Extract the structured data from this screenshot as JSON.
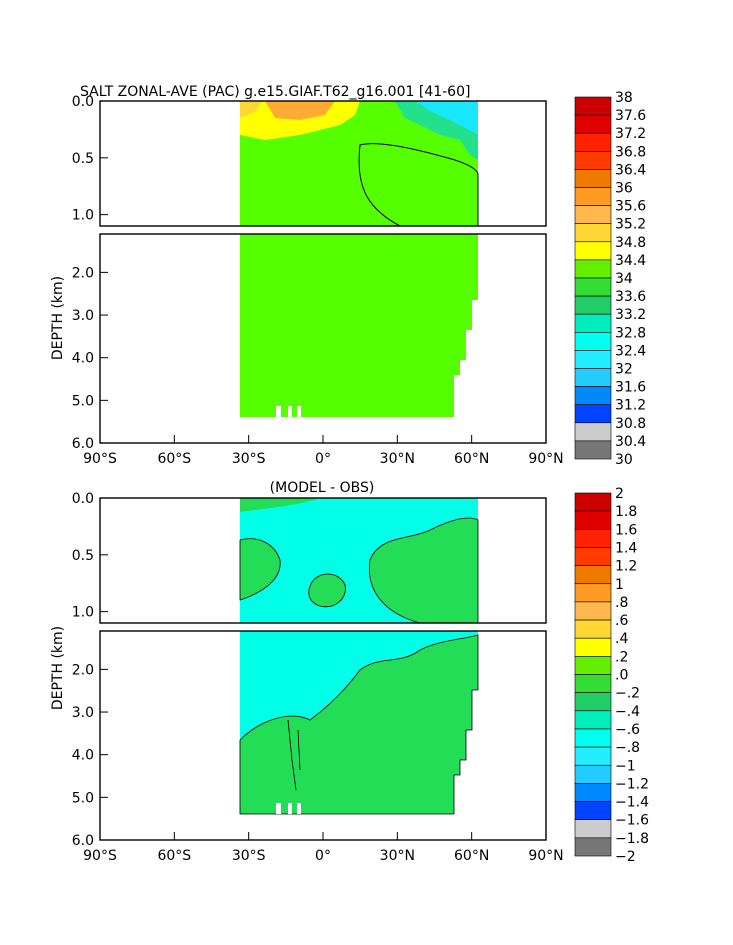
{
  "colors": {
    "frame": "#000000",
    "green_light": "#55ff00",
    "green_mid": "#22dd55",
    "green_teal": "#22e08c",
    "cyan": "#00ffe6",
    "cyan2": "#19e6ff",
    "yellow": "#ffff00",
    "orange": "#ffaa33"
  },
  "chart_data": [
    {
      "type": "heatmap",
      "title": "SALT ZONAL-AVE (PAC) g.e15.GIAF.T62_g16.001 [41-60]",
      "ylabel": "DEPTH (km)",
      "xlabel": "",
      "x_ticks": [
        "90°S",
        "60°S",
        "30°S",
        "0°",
        "30°N",
        "60°N",
        "90°N"
      ],
      "y_ticks_upper": [
        "0.0",
        "0.5",
        "1.0"
      ],
      "y_ticks_lower": [
        "2.0",
        "3.0",
        "4.0",
        "5.0",
        "6.0"
      ],
      "xlim": [
        -90,
        90
      ],
      "ylim_upper": [
        1.1,
        0.0
      ],
      "ylim_lower": [
        6.0,
        1.1
      ],
      "colorbar_labels": [
        "38",
        "37.6",
        "37.2",
        "36.8",
        "36.4",
        "36",
        "35.6",
        "35.2",
        "34.8",
        "34.4",
        "34",
        "33.6",
        "33.2",
        "32.8",
        "32.4",
        "32",
        "31.6",
        "31.2",
        "30.8",
        "30.4",
        "30"
      ],
      "colorbar_colors": [
        "#cc0000",
        "#e00000",
        "#ff2200",
        "#ff3b00",
        "#ee7a00",
        "#ff9a22",
        "#ffb84d",
        "#ffd633",
        "#ffff00",
        "#66ee00",
        "#33dd33",
        "#22cc66",
        "#00eebb",
        "#00ffee",
        "#22eeff",
        "#22ccff",
        "#0088ff",
        "#0044ff",
        "#0000ff",
        "#8800cc",
        "#ee00ee"
      ]
    },
    {
      "type": "heatmap",
      "title": "(MODEL - OBS)",
      "ylabel": "DEPTH (km)",
      "xlabel": "",
      "x_ticks": [
        "90°S",
        "60°S",
        "30°S",
        "0°",
        "30°N",
        "60°N",
        "90°N"
      ],
      "y_ticks_upper": [
        "0.0",
        "0.5",
        "1.0"
      ],
      "y_ticks_lower": [
        "2.0",
        "3.0",
        "4.0",
        "5.0",
        "6.0"
      ],
      "xlim": [
        -90,
        90
      ],
      "ylim_upper": [
        1.1,
        0.0
      ],
      "ylim_lower": [
        6.0,
        1.1
      ],
      "colorbar_labels": [
        "2",
        "1.8",
        "1.6",
        "1.4",
        "1.2",
        "1",
        ".8",
        ".6",
        ".4",
        ".2",
        ".0",
        "−.2",
        "−.4",
        "−.6",
        "−.8",
        "−1",
        "−1.2",
        "−1.4",
        "−1.6",
        "−1.8",
        "−2"
      ],
      "colorbar_colors": [
        "#cc0000",
        "#e00000",
        "#ff2200",
        "#ff3b00",
        "#ee7a00",
        "#ff9a22",
        "#ffb84d",
        "#ffd633",
        "#ffff00",
        "#66ee00",
        "#33dd33",
        "#22cc66",
        "#00eebb",
        "#00ffee",
        "#22eeff",
        "#22ccff",
        "#0088ff",
        "#0044ff",
        "#0000ff",
        "#8800cc",
        "#ee00ee"
      ]
    }
  ]
}
